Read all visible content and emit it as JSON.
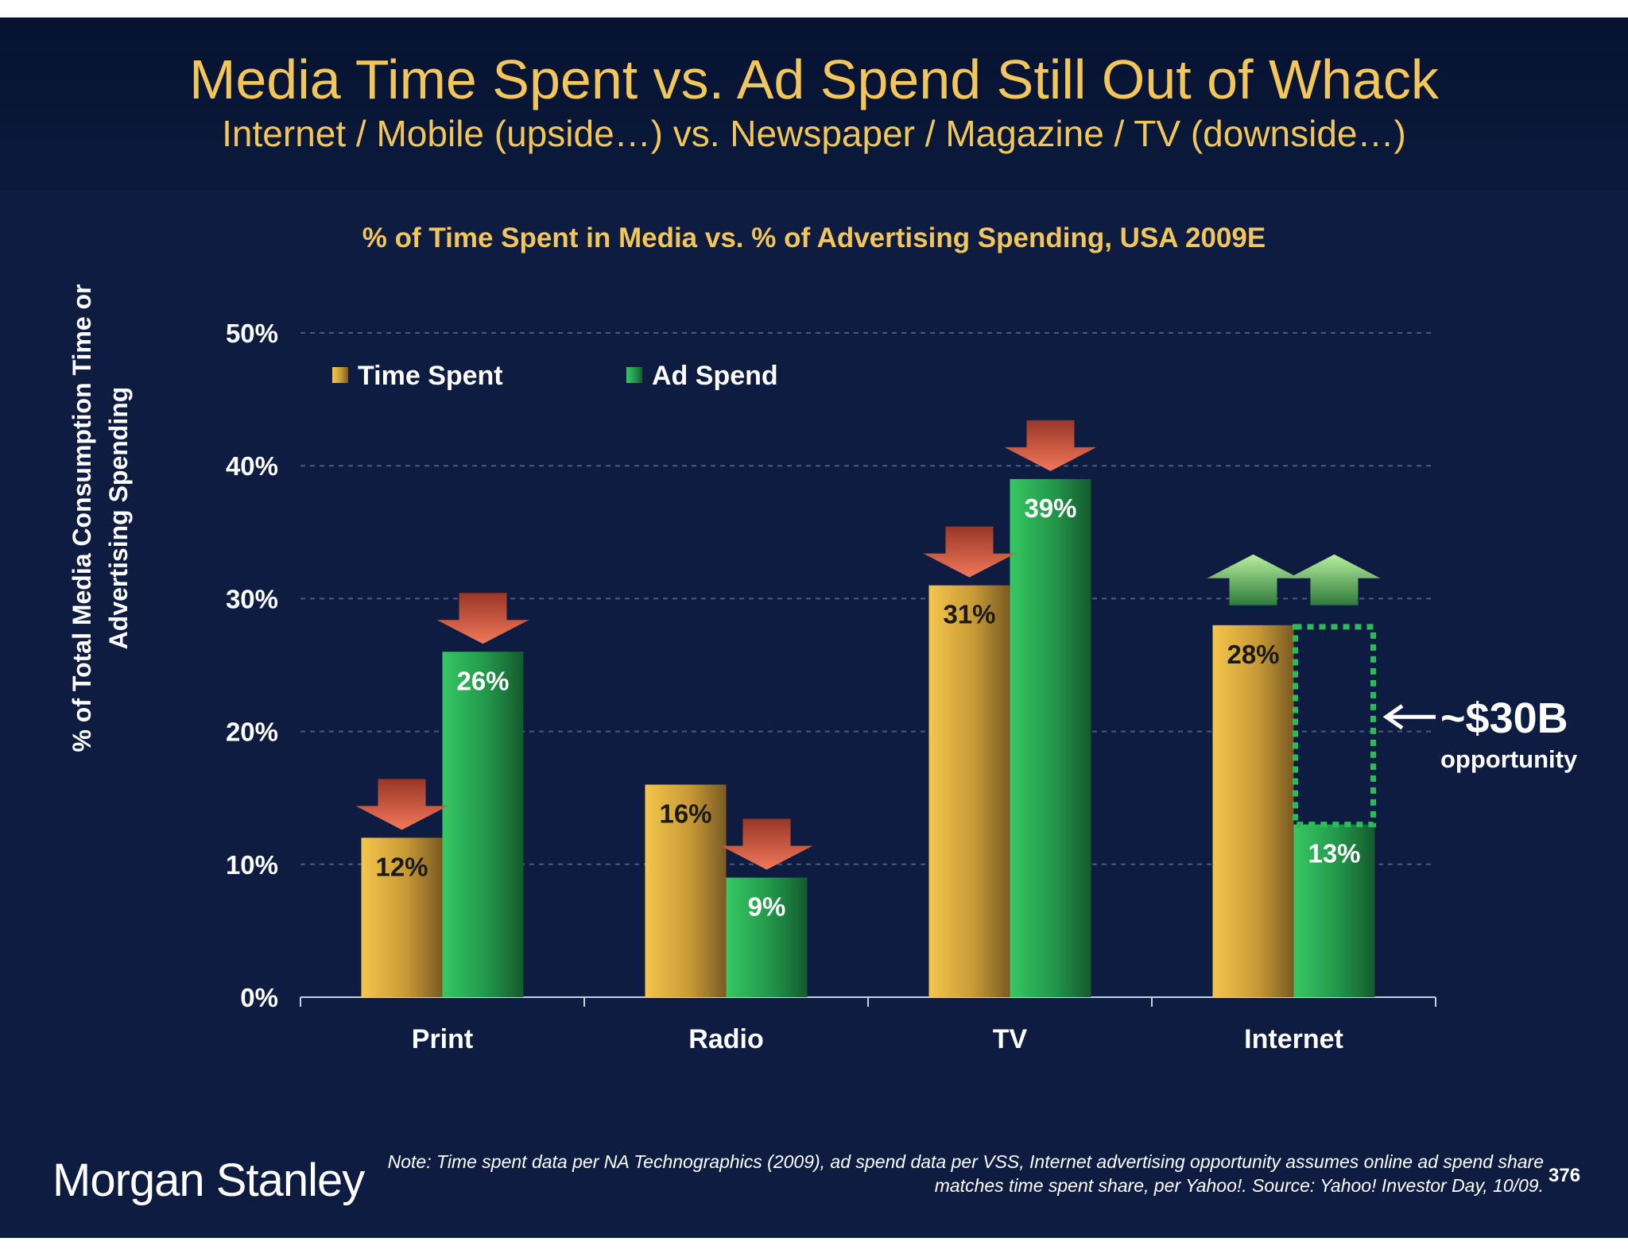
{
  "header": {
    "title": "Media Time Spent vs. Ad Spend Still Out of Whack",
    "subtitle": "Internet / Mobile (upside…) vs. Newspaper / Magazine / TV (downside…)"
  },
  "chart_data": {
    "type": "bar",
    "title": "% of Time Spent in Media vs. % of Advertising Spending, USA 2009E",
    "ylabel": "% of Total Media Consumption Time or Advertising Spending",
    "xlabel": "",
    "categories": [
      "Print",
      "Radio",
      "TV",
      "Internet"
    ],
    "series": [
      {
        "name": "Time Spent",
        "values": [
          12,
          16,
          31,
          28
        ],
        "labels": [
          "12%",
          "16%",
          "31%",
          "28%"
        ],
        "color": "#f0c04a",
        "arrows": [
          "down",
          "none",
          "down",
          "up"
        ]
      },
      {
        "name": "Ad Spend",
        "values": [
          26,
          9,
          39,
          13
        ],
        "labels": [
          "26%",
          "9%",
          "39%",
          "13%"
        ],
        "color": "#2dbb5a",
        "arrows": [
          "down",
          "down",
          "down",
          "up"
        ]
      }
    ],
    "ylim": [
      0,
      50
    ],
    "yticks": [
      "0%",
      "10%",
      "20%",
      "30%",
      "40%",
      "50%"
    ],
    "grid": true,
    "legend": "top-left",
    "opportunity": {
      "category": "Internet",
      "from": 13,
      "to": 28,
      "label": "~$30B",
      "sublabel": "opportunity"
    }
  },
  "footer": {
    "logo": "Morgan Stanley",
    "note": "Note: Time spent data per NA Technographics (2009), ad spend data per VSS, Internet advertising opportunity assumes online ad spend share matches time spent share, per Yahoo!. Source: Yahoo! Investor Day, 10/09.",
    "page": "376"
  }
}
